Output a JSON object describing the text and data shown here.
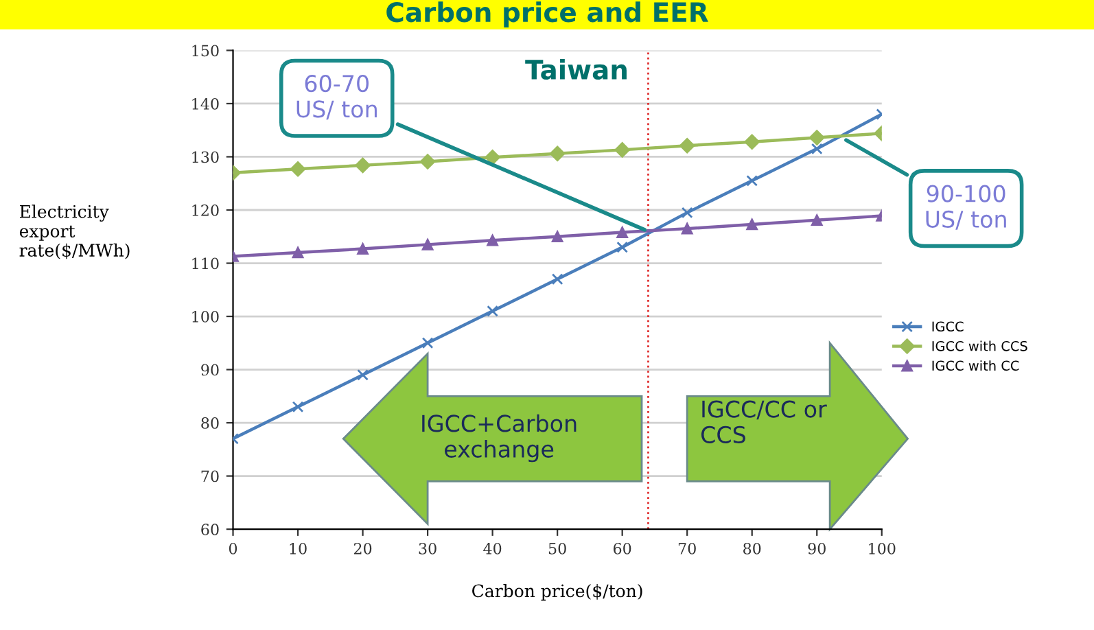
{
  "chart_data": {
    "type": "line",
    "title": "Carbon price and EER",
    "xlabel": "Carbon price($/ton)",
    "ylabel": "Electricity\nexport\nrate($/MWh)",
    "x": [
      0,
      10,
      20,
      30,
      40,
      50,
      60,
      70,
      80,
      90,
      100
    ],
    "series": [
      {
        "name": "IGCC",
        "color": "#4a7ebb",
        "marker": "cross",
        "values": [
          77,
          83,
          89,
          95,
          101,
          107,
          113,
          119.5,
          125.5,
          131.5,
          138
        ]
      },
      {
        "name": "IGCC with CCS",
        "color": "#9bbb59",
        "marker": "diamond",
        "values": [
          127,
          127.7,
          128.4,
          129.1,
          129.9,
          130.6,
          131.3,
          132.1,
          132.8,
          133.6,
          134.4
        ]
      },
      {
        "name": "IGCC with CC",
        "color": "#7f5fa8",
        "marker": "triangle",
        "values": [
          111.3,
          112,
          112.7,
          113.5,
          114.3,
          115,
          115.8,
          116.5,
          117.3,
          118.1,
          118.9
        ]
      }
    ],
    "xlim": [
      0,
      100
    ],
    "xticks": [
      0,
      10,
      20,
      30,
      40,
      50,
      60,
      70,
      80,
      90,
      100
    ],
    "ylim": [
      60,
      150
    ],
    "yticks": [
      60,
      70,
      80,
      90,
      100,
      110,
      120,
      130,
      140,
      150
    ],
    "grid": "y",
    "legend": "right",
    "line_style": "solid",
    "ref_lines": [
      {
        "axis": "x",
        "value": 64,
        "color": "#e03030",
        "line_style": "dotted"
      }
    ],
    "annotations": [
      "Taiwan",
      {
        "text": "60-70\nUS/ ton",
        "x": 64,
        "y": 116
      },
      {
        "text": "90-100\nUS/ ton",
        "x": 94,
        "y": 133.5
      },
      "IGCC+Carbon\nexchange",
      "IGCC/CC or\nCCS"
    ]
  }
}
